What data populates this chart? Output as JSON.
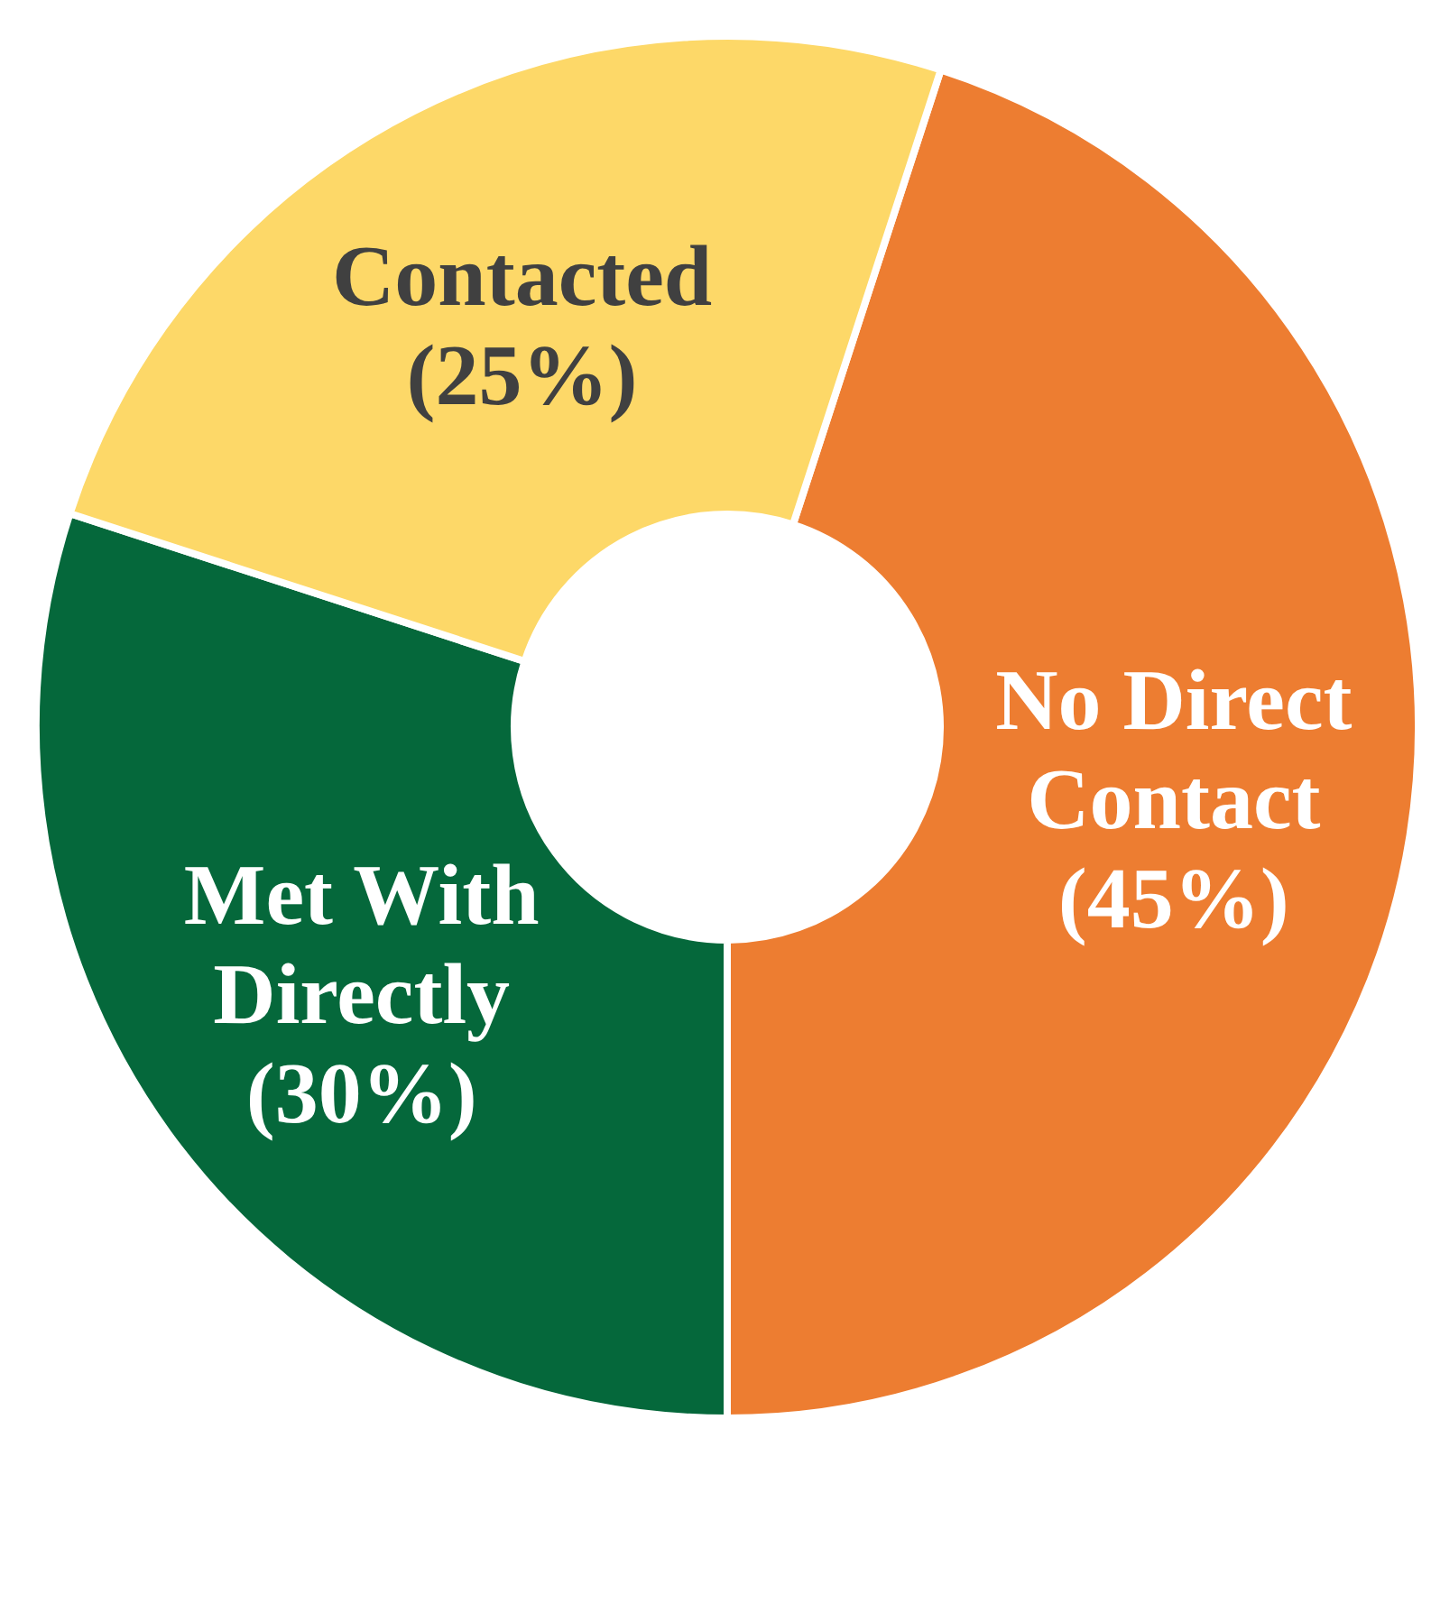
{
  "chart_data": {
    "type": "donut",
    "categories": [
      "No Direct Contact",
      "Met With Directly",
      "Contacted"
    ],
    "values": [
      45,
      30,
      25
    ],
    "colors": [
      "#ed7d31",
      "#05683b",
      "#fdd868"
    ],
    "value_labels": [
      "(45%)",
      "(30%)",
      "(25%)"
    ],
    "legend": false
  }
}
